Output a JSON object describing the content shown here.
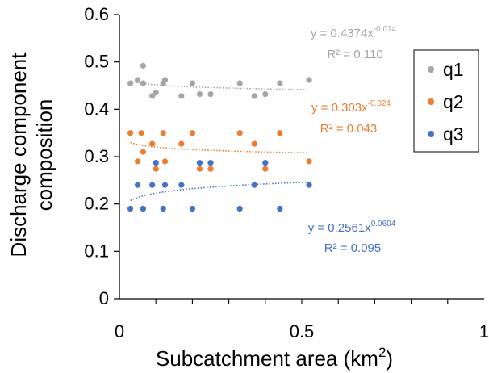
{
  "chart_data": {
    "type": "scatter",
    "title": "",
    "xlabel": "Subcatchment area (km",
    "xlabel_sup": "2",
    "xlabel_end": ")",
    "ylabel_line1": "Discharge component",
    "ylabel_line2": "composition",
    "xlim": [
      0,
      1
    ],
    "ylim": [
      0,
      0.6
    ],
    "x_ticks": [
      0,
      0.5,
      1
    ],
    "x_tick_labels": [
      "0",
      "0.5",
      "1"
    ],
    "y_ticks": [
      0,
      0.1,
      0.2,
      0.3,
      0.4,
      0.5,
      0.6
    ],
    "y_tick_labels": [
      "0",
      "0.1",
      "0.2",
      "0.3",
      "0.4",
      "0.5",
      "0.6"
    ],
    "grid": false,
    "legend_position": "top-right",
    "series": [
      {
        "name": "q1",
        "color": "#a5a5a5",
        "x": [
          0.03,
          0.05,
          0.065,
          0.065,
          0.09,
          0.1,
          0.12,
          0.125,
          0.17,
          0.2,
          0.22,
          0.25,
          0.33,
          0.37,
          0.4,
          0.44,
          0.52
        ],
        "y": [
          0.455,
          0.462,
          0.455,
          0.492,
          0.428,
          0.435,
          0.455,
          0.462,
          0.428,
          0.455,
          0.432,
          0.432,
          0.455,
          0.428,
          0.432,
          0.455,
          0.462
        ],
        "trendline": {
          "a": 0.4374,
          "b": -0.014
        },
        "equation_base": "y = 0.4374x",
        "equation_exp": "-0.014",
        "r2_label": "R² = 0.110"
      },
      {
        "name": "q2",
        "color": "#ed7d31",
        "x": [
          0.03,
          0.05,
          0.06,
          0.065,
          0.09,
          0.1,
          0.12,
          0.125,
          0.17,
          0.2,
          0.22,
          0.25,
          0.33,
          0.37,
          0.4,
          0.44,
          0.52
        ],
        "y": [
          0.35,
          0.29,
          0.35,
          0.31,
          0.327,
          0.274,
          0.35,
          0.29,
          0.327,
          0.35,
          0.274,
          0.274,
          0.35,
          0.327,
          0.274,
          0.35,
          0.29
        ],
        "trendline": {
          "a": 0.303,
          "b": -0.024
        },
        "equation_base": "y = 0.303x",
        "equation_exp": "-0.024",
        "r2_label": "R² = 0.043"
      },
      {
        "name": "q3",
        "color": "#4472c4",
        "x": [
          0.03,
          0.05,
          0.065,
          0.065,
          0.09,
          0.1,
          0.12,
          0.125,
          0.17,
          0.2,
          0.22,
          0.25,
          0.33,
          0.37,
          0.4,
          0.44,
          0.52
        ],
        "y": [
          0.19,
          0.24,
          0.19,
          0.19,
          0.24,
          0.287,
          0.19,
          0.24,
          0.24,
          0.19,
          0.287,
          0.287,
          0.19,
          0.24,
          0.287,
          0.19,
          0.24
        ],
        "trendline": {
          "a": 0.2561,
          "b": 0.0604
        },
        "equation_base": "y = 0.2561x",
        "equation_exp": "0.0604",
        "r2_label": "R² = 0.095"
      }
    ]
  }
}
